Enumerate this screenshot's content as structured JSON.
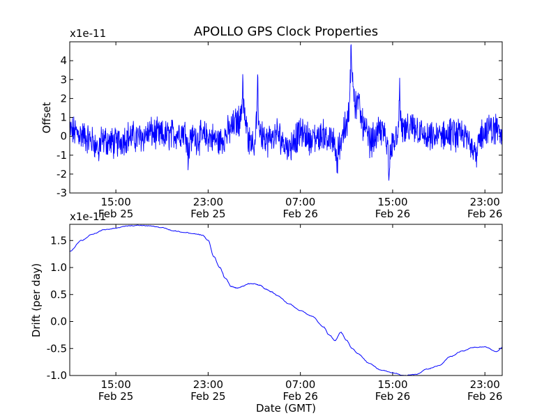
{
  "chart_data": [
    {
      "type": "line",
      "title": "APOLLO GPS Clock Properties",
      "offset_text": "x1e-11",
      "xlabel": "",
      "ylabel": "Offset",
      "x_units": "hours since Feb 25 11:00 GMT",
      "xlim": [
        0,
        37.5
      ],
      "ylim": [
        -3,
        5
      ],
      "yticks": [
        -3,
        -2,
        -1,
        0,
        1,
        2,
        3,
        4
      ],
      "ytick_labels": [
        "-3",
        "-2",
        "-1",
        "0",
        "1",
        "2",
        "3",
        "4"
      ],
      "xticks": [
        4,
        12,
        20,
        28,
        36
      ],
      "xtick_labels": [
        [
          "15:00",
          "Feb 25"
        ],
        [
          "23:00",
          "Feb 25"
        ],
        [
          "07:00",
          "Feb 26"
        ],
        [
          "15:00",
          "Feb 26"
        ],
        [
          "23:00",
          "Feb 26"
        ]
      ],
      "color": "#0000ff",
      "series": [
        {
          "name": "Offset",
          "x": [
            0,
            1,
            2,
            3,
            4,
            5,
            6,
            7,
            8,
            9,
            10,
            11,
            12,
            13,
            14,
            14.5,
            15,
            16,
            16.8,
            17,
            18,
            19,
            20,
            21,
            22,
            23,
            24,
            24.5,
            25,
            25.5,
            26,
            27,
            28,
            28.5,
            29,
            30,
            31,
            32,
            33,
            34,
            35,
            36,
            37,
            37.5
          ],
          "y": [
            0.3,
            0.1,
            -0.3,
            -0.2,
            -0.4,
            0.0,
            -0.1,
            0.2,
            0.0,
            0.1,
            0.3,
            -0.1,
            0.0,
            -0.3,
            0.4,
            0.8,
            0.6,
            -0.5,
            0.2,
            -0.3,
            0.1,
            -0.6,
            0.2,
            -0.2,
            0.1,
            -0.4,
            0.5,
            1.0,
            1.8,
            0.5,
            -0.3,
            0.3,
            -0.4,
            -0.3,
            0.2,
            0.5,
            -0.2,
            0.0,
            0.1,
            0.0,
            -0.3,
            0.3,
            0.4,
            0.0
          ]
        }
      ],
      "spikes": [
        {
          "x": 15.0,
          "y": 3.4
        },
        {
          "x": 16.3,
          "y": 2.9
        },
        {
          "x": 24.4,
          "y": 4.9
        },
        {
          "x": 24.6,
          "y": 3.1
        },
        {
          "x": 28.6,
          "y": 2.9
        },
        {
          "x": 23.2,
          "y": -2.0
        },
        {
          "x": 27.7,
          "y": -2.0
        },
        {
          "x": 10.3,
          "y": -1.6
        },
        {
          "x": 2.5,
          "y": -1.4
        },
        {
          "x": 35.3,
          "y": -1.8
        }
      ]
    },
    {
      "type": "line",
      "title": "",
      "offset_text": "x1e-11",
      "xlabel": "Date (GMT)",
      "ylabel": "Drift (per day)",
      "x_units": "hours since Feb 25 11:00 GMT",
      "xlim": [
        0,
        37.5
      ],
      "ylim": [
        -1.0,
        1.8
      ],
      "yticks": [
        -1.0,
        -0.5,
        0.0,
        0.5,
        1.0,
        1.5
      ],
      "ytick_labels": [
        "-1.0",
        "-0.5",
        "0.0",
        "0.5",
        "1.0",
        "1.5"
      ],
      "xticks": [
        4,
        12,
        20,
        28,
        36
      ],
      "xtick_labels": [
        [
          "15:00",
          "Feb 25"
        ],
        [
          "23:00",
          "Feb 25"
        ],
        [
          "07:00",
          "Feb 26"
        ],
        [
          "15:00",
          "Feb 26"
        ],
        [
          "23:00",
          "Feb 26"
        ]
      ],
      "color": "#0000ff",
      "series": [
        {
          "name": "Drift",
          "x": [
            0,
            1,
            2,
            3,
            4,
            5,
            6,
            7,
            8,
            9,
            10,
            11,
            11.5,
            12,
            12.5,
            13,
            13.5,
            14,
            14.5,
            15,
            15.5,
            16,
            16.5,
            17,
            17.5,
            18,
            19,
            20,
            21,
            22,
            22.5,
            23,
            23.5,
            24,
            24.5,
            25,
            26,
            27,
            28,
            29,
            30,
            31,
            32,
            33,
            34,
            35,
            36,
            37,
            37.5
          ],
          "y": [
            1.3,
            1.5,
            1.62,
            1.7,
            1.73,
            1.77,
            1.78,
            1.77,
            1.74,
            1.68,
            1.65,
            1.62,
            1.6,
            1.5,
            1.2,
            1.0,
            0.8,
            0.65,
            0.62,
            0.65,
            0.7,
            0.7,
            0.67,
            0.6,
            0.55,
            0.48,
            0.33,
            0.2,
            0.1,
            -0.1,
            -0.25,
            -0.35,
            -0.2,
            -0.35,
            -0.5,
            -0.6,
            -0.78,
            -0.9,
            -0.95,
            -1.0,
            -0.98,
            -0.88,
            -0.82,
            -0.65,
            -0.55,
            -0.48,
            -0.47,
            -0.56,
            -0.48
          ]
        }
      ]
    }
  ]
}
